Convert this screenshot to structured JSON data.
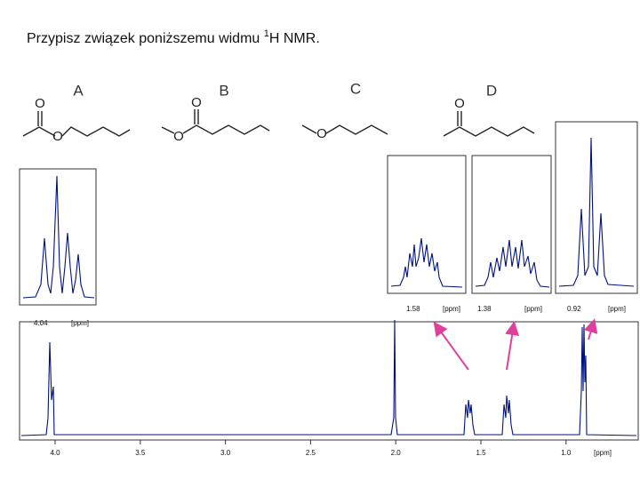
{
  "title": {
    "text": "Przypisz związek poniższemu widmu ",
    "sup": "1",
    "rest": "H NMR."
  },
  "structures": [
    {
      "label": "A",
      "atoms": [
        "O",
        "O"
      ]
    },
    {
      "label": "B",
      "atoms": [
        "O",
        "O"
      ]
    },
    {
      "label": "C",
      "atoms": [
        "O"
      ]
    },
    {
      "label": "D",
      "atoms": [
        "O"
      ]
    }
  ],
  "insets": [
    {
      "shift": "4.04",
      "unit": "[ppm]"
    },
    {
      "shift": "1.58",
      "unit": "[ppm]"
    },
    {
      "shift": "1.38",
      "unit": "[ppm]"
    },
    {
      "shift": "0.92",
      "unit": "[ppm]"
    }
  ],
  "spectrum": {
    "xticks": [
      "4.0",
      "3.5",
      "3.0",
      "2.5",
      "2.0",
      "1.5",
      "1.0"
    ],
    "unit": "[ppm]"
  }
}
